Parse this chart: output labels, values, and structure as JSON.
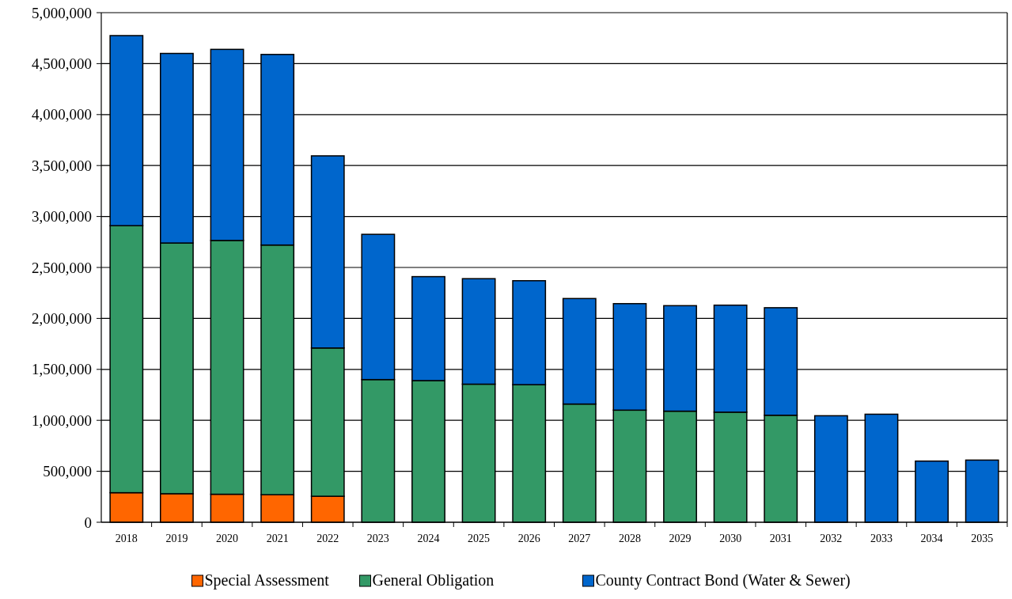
{
  "chart_data": {
    "type": "bar",
    "stacked": true,
    "categories": [
      "2018",
      "2019",
      "2020",
      "2021",
      "2022",
      "2023",
      "2024",
      "2025",
      "2026",
      "2027",
      "2028",
      "2029",
      "2030",
      "2031",
      "2032",
      "2033",
      "2034",
      "2035"
    ],
    "series": [
      {
        "name": "Special Assessment",
        "color": "#ff6600",
        "values": [
          290000,
          280000,
          275000,
          270000,
          255000,
          null,
          null,
          null,
          null,
          null,
          null,
          null,
          null,
          null,
          null,
          null,
          null,
          null
        ]
      },
      {
        "name": "General Obligation",
        "color": "#339966",
        "values": [
          2620000,
          2460000,
          2490000,
          2450000,
          1455000,
          1400000,
          1390000,
          1355000,
          1350000,
          1160000,
          1100000,
          1090000,
          1080000,
          1050000,
          null,
          null,
          null,
          null
        ]
      },
      {
        "name": "County Contract Bond (Water & Sewer)",
        "color": "#0066cc",
        "values": [
          1865000,
          1860000,
          1875000,
          1870000,
          1885000,
          1425000,
          1020000,
          1035000,
          1020000,
          1035000,
          1045000,
          1035000,
          1050000,
          1055000,
          1045000,
          1060000,
          600000,
          610000
        ]
      }
    ],
    "ylim": [
      0,
      5000000
    ],
    "yticks": [
      {
        "value": 0,
        "label": "0"
      },
      {
        "value": 500000,
        "label": "500,000"
      },
      {
        "value": 1000000,
        "label": "1,000,000"
      },
      {
        "value": 1500000,
        "label": "1,500,000"
      },
      {
        "value": 2000000,
        "label": "2,000,000"
      },
      {
        "value": 2500000,
        "label": "2,500,000"
      },
      {
        "value": 3000000,
        "label": "3,000,000"
      },
      {
        "value": 3500000,
        "label": "3,500,000"
      },
      {
        "value": 4000000,
        "label": "4,000,000"
      },
      {
        "value": 4500000,
        "label": "4,500,000"
      },
      {
        "value": 5000000,
        "label": "5,000,000"
      }
    ],
    "grid": "y",
    "legend": "bottom"
  }
}
